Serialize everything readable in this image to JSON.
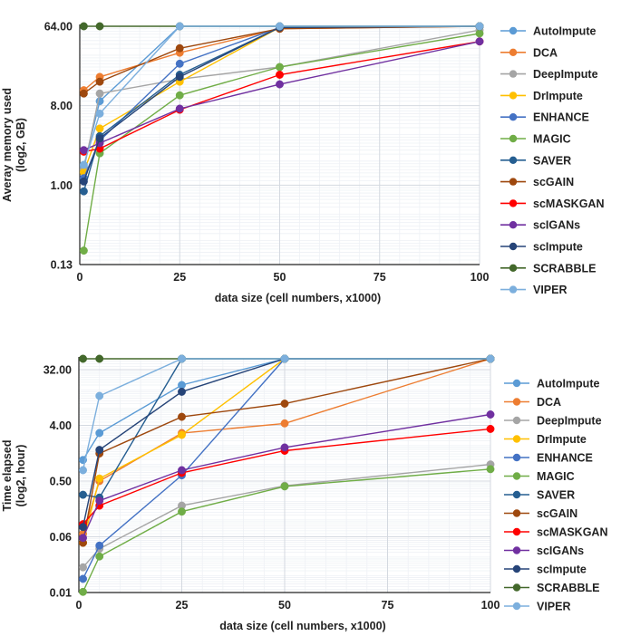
{
  "chart_data": [
    {
      "type": "line",
      "ylabel": "Averay memory used (log2, GB)",
      "ylabel_lines": [
        "Averay memory used",
        "(log2, GB)"
      ],
      "xlabel": "data size (cell numbers, x1000)",
      "yscale": "log2",
      "xlim": [
        0,
        100
      ],
      "ylim": [
        0.125,
        64
      ],
      "xticks": [
        0,
        25,
        50,
        75,
        100
      ],
      "xtick_labels": [
        "0",
        "25",
        "50",
        "75",
        "100"
      ],
      "yticks": [
        0.125,
        1,
        8,
        64
      ],
      "ytick_labels": [
        "0.13",
        "1.00",
        "8.00",
        "64.00"
      ],
      "grid": true,
      "legend_position": "right",
      "series": [
        {
          "name": "AutoImpute",
          "color": "#5b9bd5",
          "x": [
            1,
            5,
            25,
            50,
            100
          ],
          "y": [
            1.6,
            9,
            64,
            64,
            64
          ]
        },
        {
          "name": "DCA",
          "color": "#ed7d31",
          "x": [
            1,
            5,
            25,
            50,
            100
          ],
          "y": [
            12,
            17,
            32,
            60,
            64
          ]
        },
        {
          "name": "DeepImpute",
          "color": "#a5a5a5",
          "x": [
            1,
            5,
            25,
            50,
            100
          ],
          "y": [
            1.5,
            11,
            16,
            22,
            58
          ]
        },
        {
          "name": "DrImpute",
          "color": "#ffc000",
          "x": [
            1,
            5,
            25,
            50,
            100
          ],
          "y": [
            1.4,
            4.4,
            15,
            62,
            64
          ]
        },
        {
          "name": "ENHANCE",
          "color": "#4472c4",
          "x": [
            1,
            5,
            25,
            50,
            100
          ],
          "y": [
            1.2,
            3.2,
            24,
            62,
            64
          ]
        },
        {
          "name": "MAGIC",
          "color": "#70ad47",
          "x": [
            1,
            5,
            25,
            50,
            100
          ],
          "y": [
            0.18,
            2.3,
            10.5,
            22,
            53
          ]
        },
        {
          "name": "SAVER",
          "color": "#255e91",
          "x": [
            1,
            5,
            25,
            50,
            100
          ],
          "y": [
            0.85,
            3.6,
            18,
            62,
            64
          ]
        },
        {
          "name": "scGAIN",
          "color": "#9e480e",
          "x": [
            1,
            5,
            25,
            50,
            100
          ],
          "y": [
            11,
            15,
            36,
            60,
            64
          ]
        },
        {
          "name": "scMASKGAN",
          "color": "#ff0000",
          "x": [
            1,
            5,
            25,
            50,
            100
          ],
          "y": [
            2.4,
            2.6,
            7.2,
            18,
            43
          ]
        },
        {
          "name": "scIGANs",
          "color": "#7030a0",
          "x": [
            1,
            5,
            25,
            50,
            100
          ],
          "y": [
            2.5,
            3,
            7.4,
            14,
            43
          ]
        },
        {
          "name": "scImpute",
          "color": "#264478",
          "x": [
            1,
            5,
            25,
            50,
            100
          ],
          "y": [
            1.1,
            3.4,
            17,
            62,
            64
          ]
        },
        {
          "name": "SCRABBLE",
          "color": "#43682b",
          "x": [
            1,
            5,
            25,
            50,
            100
          ],
          "y": [
            64,
            64,
            64,
            64,
            64
          ]
        },
        {
          "name": "VIPER",
          "color": "#7cafdd",
          "x": [
            1,
            5,
            25,
            50,
            100
          ],
          "y": [
            1.7,
            6.5,
            64,
            64,
            64
          ]
        }
      ]
    },
    {
      "type": "line",
      "ylabel": "Time elapsed (log2, hour)",
      "ylabel_lines": [
        "Time elapsed",
        "(log2, hour)"
      ],
      "xlabel": "data size (cell numbers, x1000)",
      "yscale": "log2",
      "xlim": [
        0,
        100
      ],
      "ylim": [
        0.0078125,
        48
      ],
      "xticks": [
        0,
        25,
        50,
        75,
        100
      ],
      "xtick_labels": [
        "0",
        "25",
        "50",
        "75",
        "100"
      ],
      "yticks": [
        0.0078125,
        0.0625,
        0.5,
        4,
        32
      ],
      "ytick_labels": [
        "0.01",
        "0.06",
        "0.50",
        "4.00",
        "32.00"
      ],
      "grid": true,
      "legend_position": "right",
      "series": [
        {
          "name": "AutoImpute",
          "color": "#5b9bd5",
          "x": [
            1,
            5,
            25,
            50,
            100
          ],
          "y": [
            1.1,
            3,
            18,
            48,
            48
          ]
        },
        {
          "name": "DCA",
          "color": "#ed7d31",
          "x": [
            1,
            5,
            25,
            50,
            100
          ],
          "y": [
            0.07,
            0.5,
            3,
            4.3,
            48
          ]
        },
        {
          "name": "DeepImpute",
          "color": "#a5a5a5",
          "x": [
            1,
            5,
            25,
            50,
            100
          ],
          "y": [
            0.02,
            0.04,
            0.2,
            0.42,
            0.93
          ]
        },
        {
          "name": "DrImpute",
          "color": "#ffc000",
          "x": [
            1,
            5,
            25,
            50,
            100
          ],
          "y": [
            0.05,
            0.55,
            2.8,
            48,
            48
          ]
        },
        {
          "name": "ENHANCE",
          "color": "#4472c4",
          "x": [
            1,
            5,
            25,
            50,
            100
          ],
          "y": [
            0.013,
            0.045,
            0.62,
            48,
            48
          ]
        },
        {
          "name": "MAGIC",
          "color": "#70ad47",
          "x": [
            1,
            5,
            25,
            50,
            100
          ],
          "y": [
            0.008,
            0.03,
            0.16,
            0.41,
            0.78
          ]
        },
        {
          "name": "SAVER",
          "color": "#255e91",
          "x": [
            1,
            5,
            25,
            50,
            100
          ],
          "y": [
            0.3,
            0.27,
            48,
            48,
            48
          ]
        },
        {
          "name": "scGAIN",
          "color": "#9e480e",
          "x": [
            1,
            5,
            25,
            50,
            100
          ],
          "y": [
            0.05,
            1.4,
            5.5,
            9,
            48
          ]
        },
        {
          "name": "scMASKGAN",
          "color": "#ff0000",
          "x": [
            1,
            5,
            25,
            50,
            100
          ],
          "y": [
            0.1,
            0.2,
            0.68,
            1.55,
            3.5
          ]
        },
        {
          "name": "scIGANs",
          "color": "#7030a0",
          "x": [
            1,
            5,
            25,
            50,
            100
          ],
          "y": [
            0.06,
            0.24,
            0.75,
            1.75,
            6
          ]
        },
        {
          "name": "scImpute",
          "color": "#264478",
          "x": [
            1,
            5,
            25,
            50,
            100
          ],
          "y": [
            0.09,
            1.6,
            14,
            48,
            48
          ]
        },
        {
          "name": "SCRABBLE",
          "color": "#43682b",
          "x": [
            1,
            5,
            25,
            50,
            100
          ],
          "y": [
            48,
            48,
            48,
            48,
            48
          ]
        },
        {
          "name": "VIPER",
          "color": "#7cafdd",
          "x": [
            1,
            5,
            25,
            50,
            100
          ],
          "y": [
            0.75,
            12,
            48,
            48,
            48
          ]
        }
      ]
    }
  ]
}
